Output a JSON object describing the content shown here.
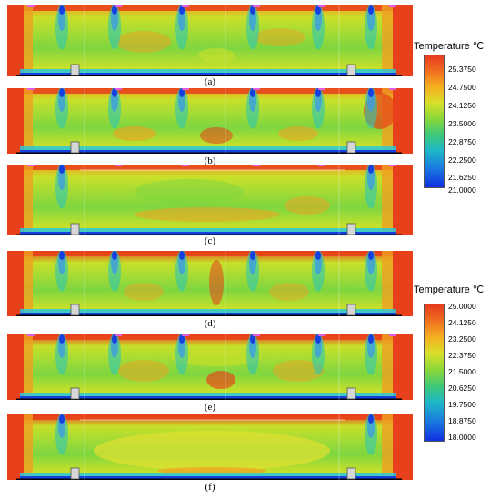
{
  "panels": [
    {
      "id": "a",
      "label": "(a)"
    },
    {
      "id": "b",
      "label": "(b)"
    },
    {
      "id": "c",
      "label": "(c)"
    },
    {
      "id": "d",
      "label": "(d)"
    },
    {
      "id": "e",
      "label": "(e)"
    },
    {
      "id": "f",
      "label": "(f)"
    }
  ],
  "legends": [
    {
      "title": "Temperature ℃",
      "ticks": [
        "25.3750",
        "24.7500",
        "24.1250",
        "23.5000",
        "22.8750",
        "22.2500",
        "21.6250",
        "21.0000"
      ]
    },
    {
      "title": "Temperature ℃",
      "ticks": [
        "25.0000",
        "24.1250",
        "23.2500",
        "22.3750",
        "21.5000",
        "20.6250",
        "19.7500",
        "18.8750",
        "18.0000"
      ]
    }
  ],
  "colors": {
    "hot": "#e8401a",
    "warm": "#f0a020",
    "mid": "#c8e02a",
    "green": "#7ed640",
    "cool": "#2ec8b0",
    "cold": "#1540e0"
  }
}
